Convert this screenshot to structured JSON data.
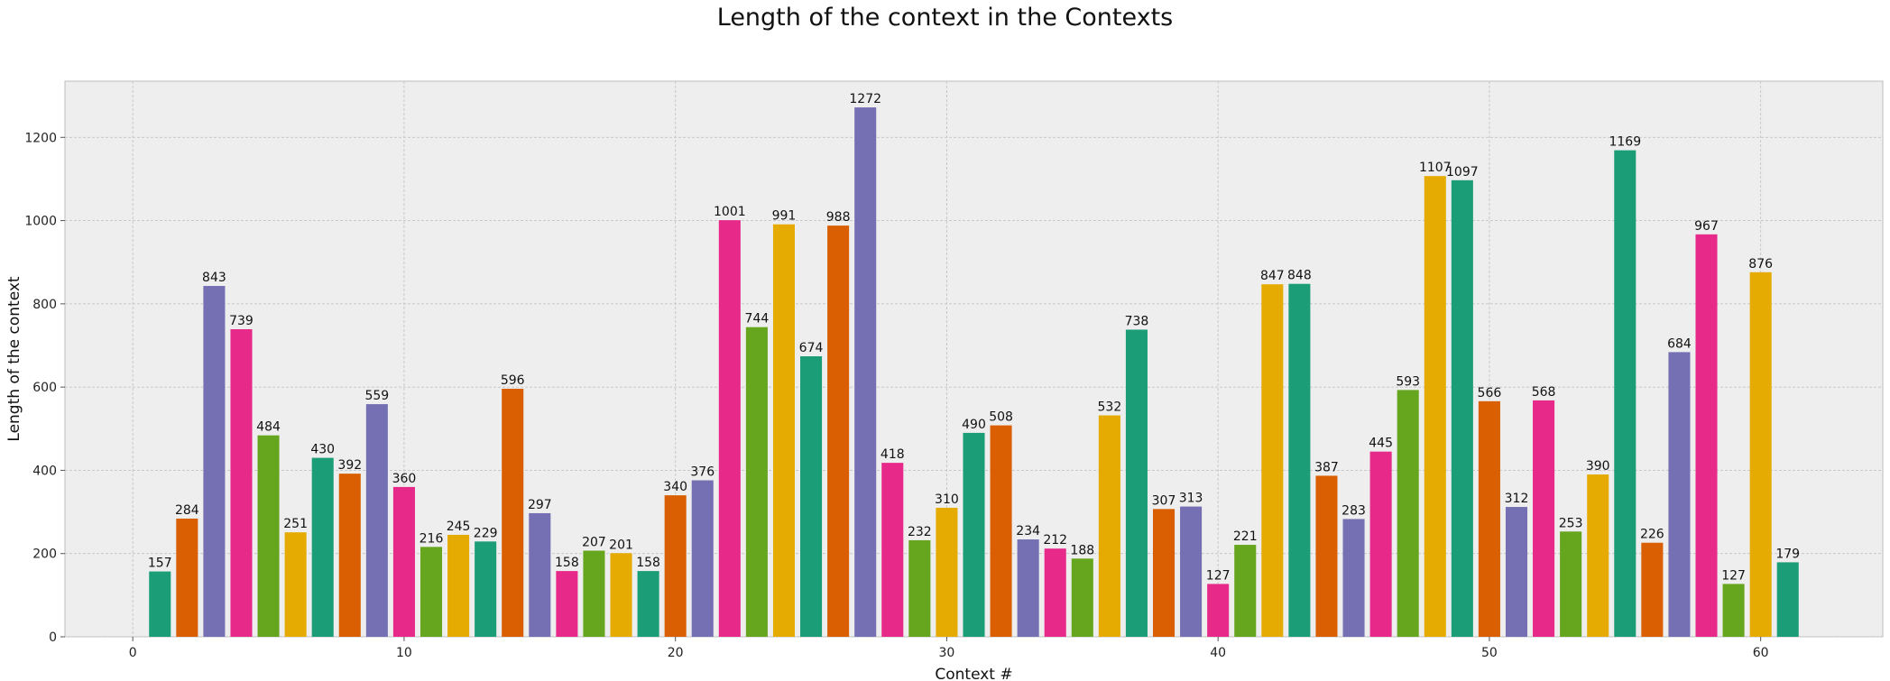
{
  "chart_data": {
    "type": "bar",
    "title": "Length of the context in the Contexts",
    "xlabel": "Context #",
    "ylabel": "Length of the context",
    "xlim": [
      -2.5,
      64.5
    ],
    "ylim": [
      0,
      1335
    ],
    "xticks": [
      0,
      10,
      20,
      30,
      40,
      50,
      60
    ],
    "yticks": [
      0,
      200,
      400,
      600,
      800,
      1000,
      1200
    ],
    "grid": true,
    "colors": [
      "#1b9e77",
      "#d95f02",
      "#7570b3",
      "#e7298a",
      "#66a61e",
      "#e6ab02"
    ],
    "x": [
      1,
      2,
      3,
      4,
      5,
      6,
      7,
      8,
      9,
      10,
      11,
      12,
      13,
      14,
      15,
      16,
      17,
      18,
      19,
      20,
      21,
      22,
      23,
      24,
      25,
      26,
      27,
      28,
      29,
      30,
      31,
      32,
      33,
      34,
      35,
      36,
      37,
      38,
      39,
      40,
      41,
      42,
      43,
      44,
      45,
      46,
      47,
      48,
      49,
      50,
      51,
      52,
      53,
      54,
      55,
      56,
      57,
      58,
      59,
      60,
      61
    ],
    "values": [
      157,
      284,
      843,
      739,
      484,
      251,
      430,
      392,
      559,
      360,
      216,
      245,
      229,
      596,
      297,
      158,
      207,
      201,
      158,
      340,
      376,
      1001,
      744,
      991,
      674,
      988,
      1272,
      418,
      232,
      310,
      490,
      508,
      234,
      212,
      188,
      532,
      738,
      307,
      313,
      127,
      221,
      847,
      848,
      387,
      283,
      445,
      593,
      1107,
      1097,
      566,
      312,
      568,
      253,
      390,
      1169,
      226,
      684,
      967,
      127,
      876,
      179
    ]
  }
}
